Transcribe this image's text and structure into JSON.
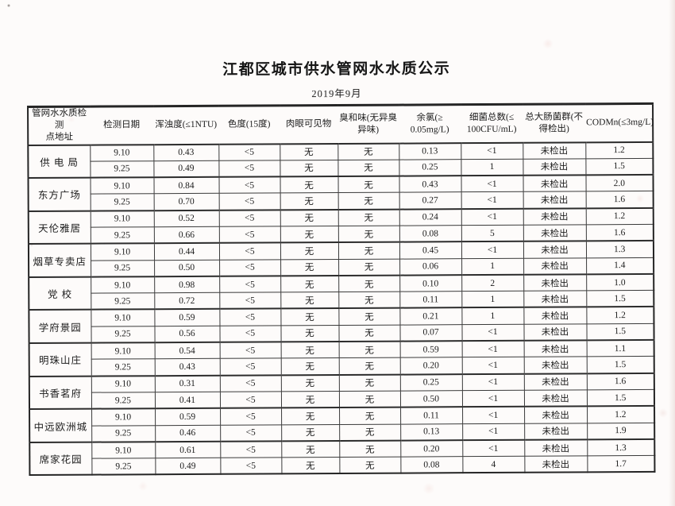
{
  "document": {
    "title": "江都区城市供水管网水水质公示",
    "subtitle": "2019年9月"
  },
  "table": {
    "headers": [
      "管网水水质检测\n点地址",
      "检测日期",
      "浑浊度(≤1NTU)",
      "色度(15度)",
      "肉眼可见物",
      "臭和味(无异臭\n异味)",
      "余氯(≥\n0.05mg/L)",
      "细菌总数(≤\n100CFU/mL)",
      "总大肠菌群(不\n得检出)",
      "CODMn(≤3mg/L)"
    ],
    "groups": [
      {
        "location": "供 电 局",
        "rows": [
          [
            "9.10",
            "0.43",
            "<5",
            "无",
            "无",
            "0.13",
            "<1",
            "未检出",
            "1.2"
          ],
          [
            "9.25",
            "0.49",
            "<5",
            "无",
            "无",
            "0.25",
            "1",
            "未检出",
            "1.5"
          ]
        ]
      },
      {
        "location": "东方广场",
        "rows": [
          [
            "9.10",
            "0.84",
            "<5",
            "无",
            "无",
            "0.43",
            "<1",
            "未检出",
            "2.0"
          ],
          [
            "9.25",
            "0.70",
            "<5",
            "无",
            "无",
            "0.27",
            "<1",
            "未检出",
            "1.6"
          ]
        ]
      },
      {
        "location": "天伦雅居",
        "rows": [
          [
            "9.10",
            "0.52",
            "<5",
            "无",
            "无",
            "0.24",
            "<1",
            "未检出",
            "1.2"
          ],
          [
            "9.25",
            "0.66",
            "<5",
            "无",
            "无",
            "0.08",
            "5",
            "未检出",
            "1.6"
          ]
        ]
      },
      {
        "location": "烟草专卖店",
        "rows": [
          [
            "9.10",
            "0.44",
            "<5",
            "无",
            "无",
            "0.45",
            "<1",
            "未检出",
            "1.3"
          ],
          [
            "9.25",
            "0.50",
            "<5",
            "无",
            "无",
            "0.06",
            "1",
            "未检出",
            "1.4"
          ]
        ]
      },
      {
        "location": "党 校",
        "rows": [
          [
            "9.10",
            "0.98",
            "<5",
            "无",
            "无",
            "0.10",
            "2",
            "未检出",
            "1.0"
          ],
          [
            "9.25",
            "0.72",
            "<5",
            "无",
            "无",
            "0.11",
            "1",
            "未检出",
            "1.5"
          ]
        ]
      },
      {
        "location": "学府景园",
        "rows": [
          [
            "9.10",
            "0.59",
            "<5",
            "无",
            "无",
            "0.21",
            "1",
            "未检出",
            "1.2"
          ],
          [
            "9.25",
            "0.56",
            "<5",
            "无",
            "无",
            "0.07",
            "<1",
            "未检出",
            "1.5"
          ]
        ]
      },
      {
        "location": "明珠山庄",
        "rows": [
          [
            "9.10",
            "0.54",
            "<5",
            "无",
            "无",
            "0.59",
            "<1",
            "未检出",
            "1.1"
          ],
          [
            "9.25",
            "0.43",
            "<5",
            "无",
            "无",
            "0.20",
            "<1",
            "未检出",
            "1.5"
          ]
        ]
      },
      {
        "location": "书香茗府",
        "rows": [
          [
            "9.10",
            "0.31",
            "<5",
            "无",
            "无",
            "0.25",
            "<1",
            "未检出",
            "1.6"
          ],
          [
            "9.25",
            "0.41",
            "<5",
            "无",
            "无",
            "0.50",
            "<1",
            "未检出",
            "1.5"
          ]
        ]
      },
      {
        "location": "中远欧洲城",
        "rows": [
          [
            "9.10",
            "0.59",
            "<5",
            "无",
            "无",
            "0.11",
            "<1",
            "未检出",
            "1.2"
          ],
          [
            "9.25",
            "0.46",
            "<5",
            "无",
            "无",
            "0.13",
            "<1",
            "未检出",
            "1.9"
          ]
        ]
      },
      {
        "location": "席家花园",
        "rows": [
          [
            "9.10",
            "0.61",
            "<5",
            "无",
            "无",
            "0.20",
            "<1",
            "未检出",
            "1.3"
          ],
          [
            "9.25",
            "0.49",
            "<5",
            "无",
            "无",
            "0.08",
            "4",
            "未检出",
            "1.7"
          ]
        ]
      }
    ]
  }
}
